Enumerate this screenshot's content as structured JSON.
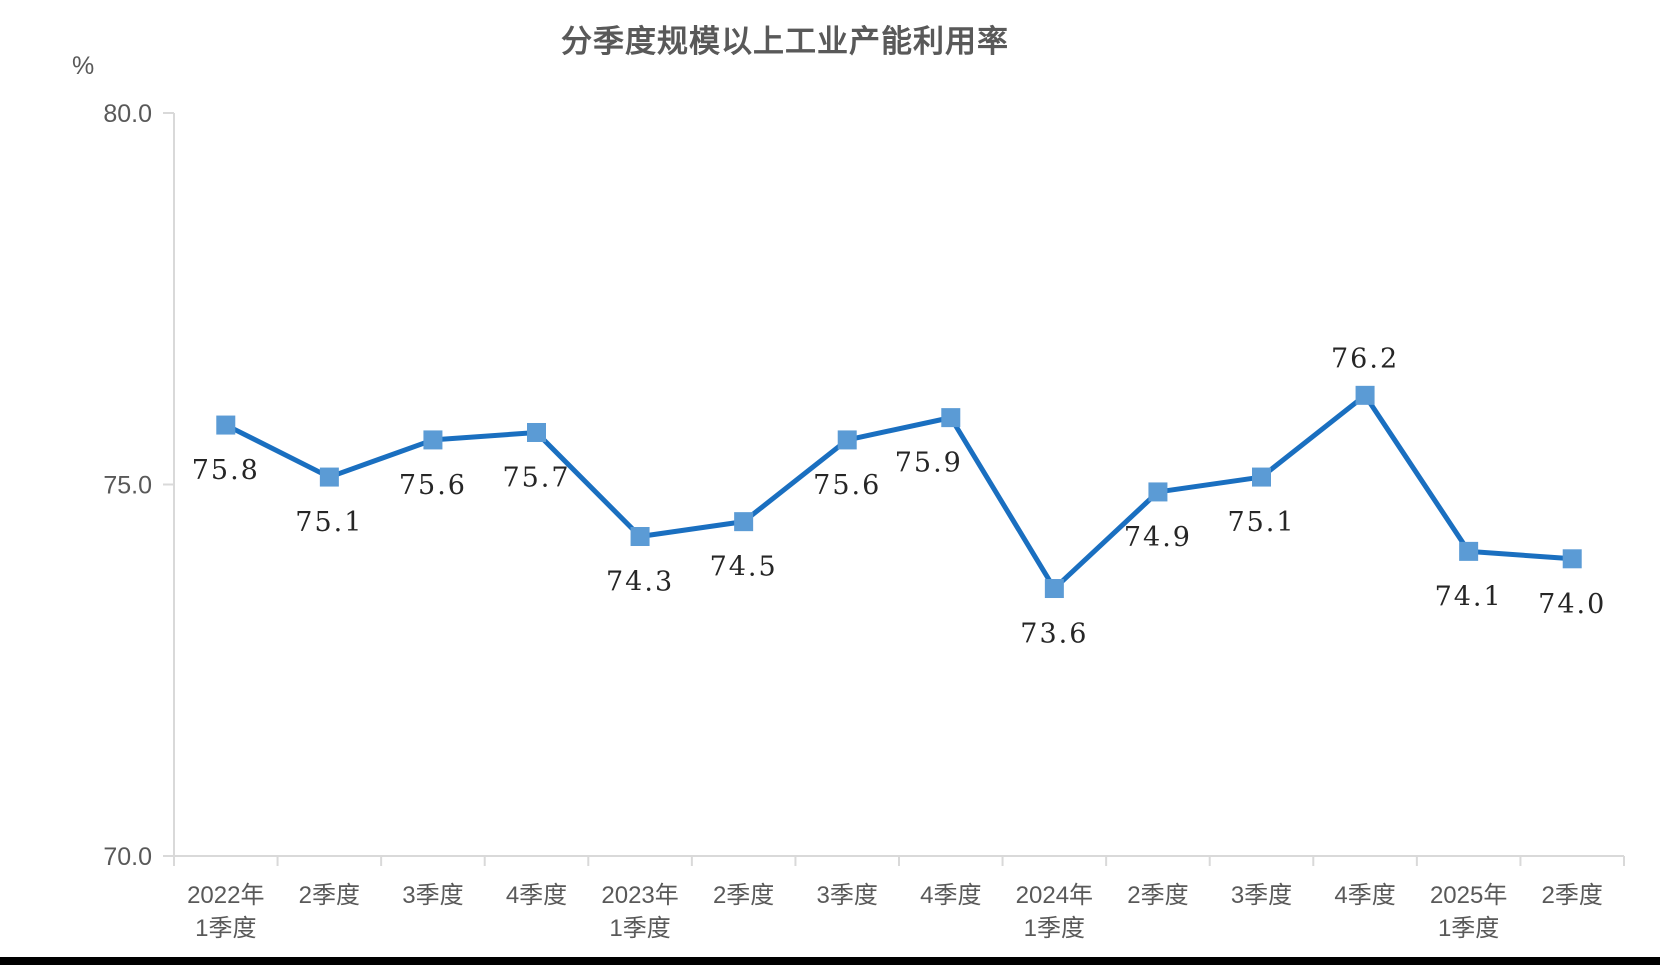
{
  "page": {
    "background_color": "#ffffff",
    "bottom_bar_color": "#000000"
  },
  "chart_data": {
    "type": "line",
    "title": "分季度规模以上工业产能利用率",
    "ylabel": "%",
    "xlabel": "",
    "ylim": [
      70.0,
      80.0
    ],
    "grid": false,
    "legend_position": "none",
    "yticks": [
      {
        "value": 80.0,
        "label": "80.0"
      },
      {
        "value": 75.0,
        "label": "75.0"
      },
      {
        "value": 70.0,
        "label": "70.0"
      }
    ],
    "categories": [
      [
        "2022年",
        "1季度"
      ],
      [
        "2季度"
      ],
      [
        "3季度"
      ],
      [
        "4季度"
      ],
      [
        "2023年",
        "1季度"
      ],
      [
        "2季度"
      ],
      [
        "3季度"
      ],
      [
        "4季度"
      ],
      [
        "2024年",
        "1季度"
      ],
      [
        "2季度"
      ],
      [
        "3季度"
      ],
      [
        "4季度"
      ],
      [
        "2025年",
        "1季度"
      ],
      [
        "2季度"
      ]
    ],
    "values": [
      75.8,
      75.1,
      75.6,
      75.7,
      74.3,
      74.5,
      75.6,
      75.9,
      73.6,
      74.9,
      75.1,
      76.2,
      74.1,
      74.0
    ],
    "data_labels": [
      "75.8",
      "75.1",
      "75.6",
      "75.7",
      "74.3",
      "74.5",
      "75.6",
      "75.9",
      "73.6",
      "74.9",
      "75.1",
      "76.2",
      "74.1",
      "74.0"
    ],
    "label_positions": [
      "below",
      "below",
      "below",
      "below",
      "below",
      "below",
      "below",
      "below-left",
      "below",
      "below",
      "below",
      "above",
      "below",
      "below"
    ],
    "colors": {
      "line": "#1a6fc0",
      "marker": "#5b9bd5",
      "axis": "#d9d9d9",
      "axis_text": "#595959",
      "data_label_text": "#262626",
      "title_text": "#595959"
    },
    "marker_shape": "square"
  }
}
